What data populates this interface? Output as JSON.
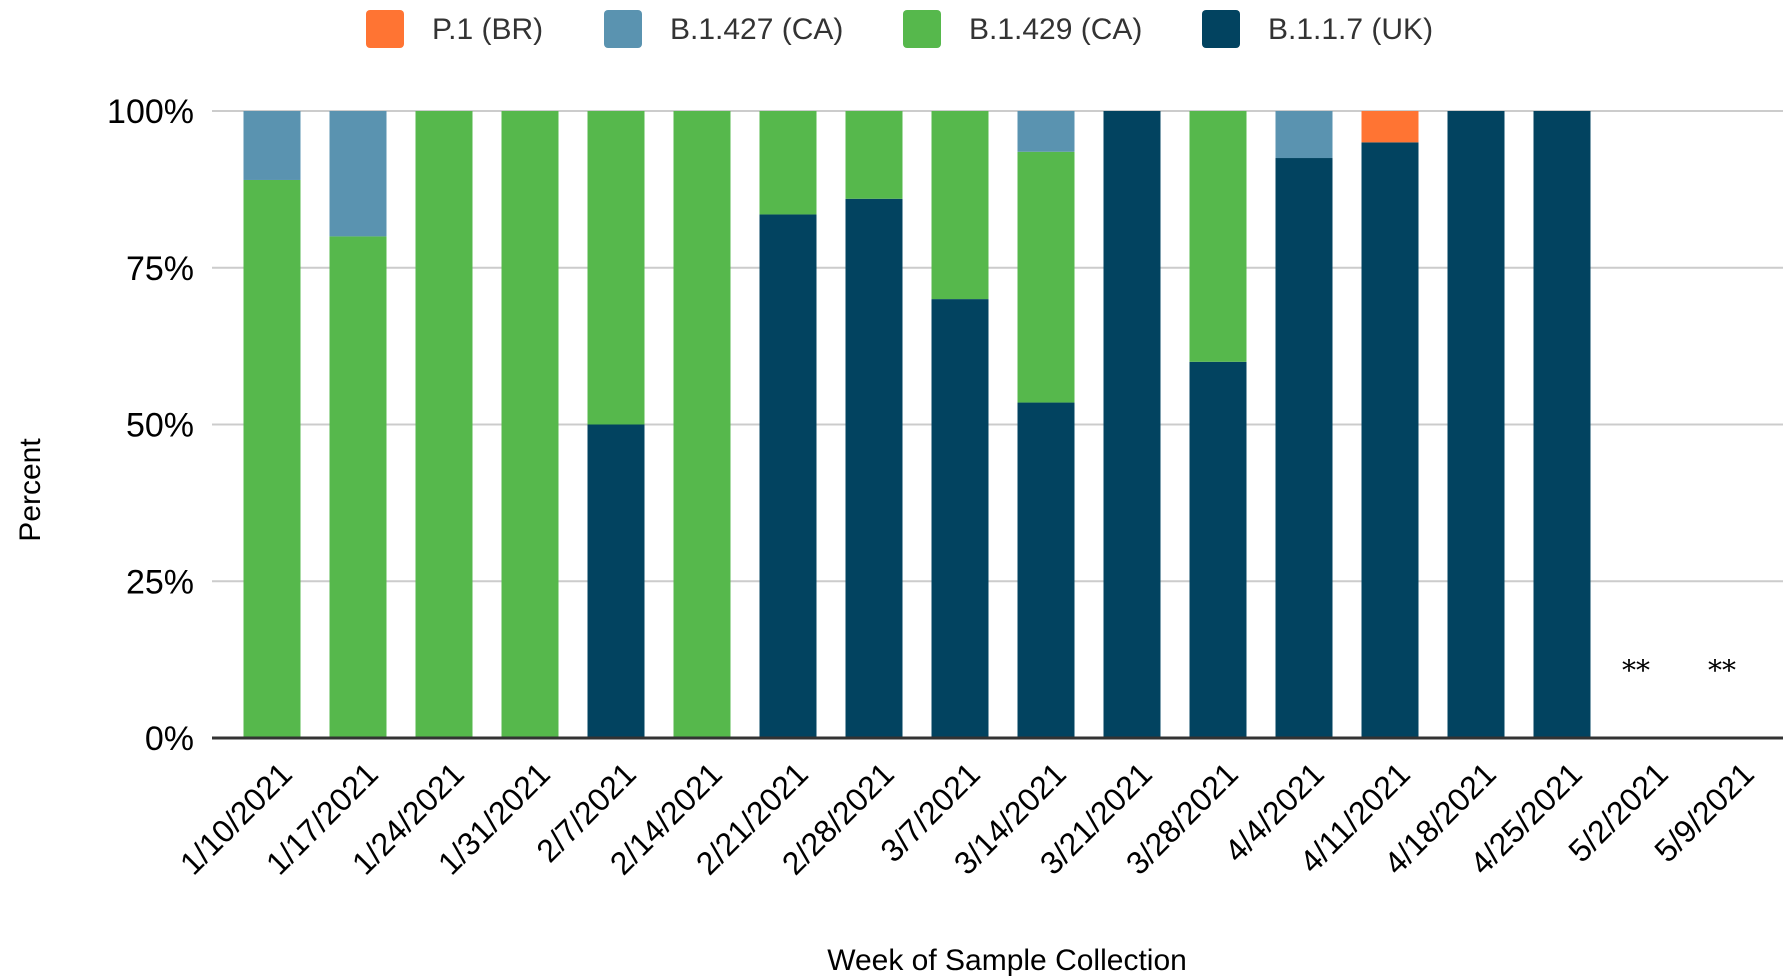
{
  "chart_data": {
    "type": "bar",
    "stacked": true,
    "xlabel": "Week of Sample Collection",
    "ylabel": "Percent",
    "ylim": [
      0,
      100
    ],
    "yticks": [
      "0%",
      "25%",
      "50%",
      "75%",
      "100%"
    ],
    "grid": true,
    "legend_position": "top",
    "legend": [
      "P.1 (BR)",
      "B.1.427 (CA)",
      "B.1.429 (CA)",
      "B.1.1.7 (UK)"
    ],
    "categories": [
      "1/10/2021",
      "1/17/2021",
      "1/24/2021",
      "1/31/2021",
      "2/7/2021",
      "2/14/2021",
      "2/21/2021",
      "2/28/2021",
      "3/7/2021",
      "3/14/2021",
      "3/21/2021",
      "3/28/2021",
      "4/4/2021",
      "4/11/2021",
      "4/18/2021",
      "4/25/2021",
      "5/2/2021",
      "5/9/2021"
    ],
    "stack_order": [
      "B.1.1.7 (UK)",
      "B.1.429 (CA)",
      "B.1.427 (CA)",
      "P.1 (BR)"
    ],
    "series": [
      {
        "name": "P.1 (BR)",
        "color": "#FF7433",
        "values": [
          0,
          0,
          0,
          0,
          0,
          0,
          0,
          0,
          0,
          0,
          0,
          0,
          0,
          5,
          0,
          0,
          null,
          null
        ]
      },
      {
        "name": "B.1.427 (CA)",
        "color": "#5A93B0",
        "values": [
          11,
          20,
          0,
          0,
          0,
          0,
          0,
          0,
          0,
          6.5,
          0,
          0,
          7.5,
          0,
          0,
          0,
          null,
          null
        ]
      },
      {
        "name": "B.1.429 (CA)",
        "color": "#56B84C",
        "values": [
          89,
          80,
          100,
          100,
          50,
          100,
          16.5,
          14,
          30,
          40,
          0,
          40,
          0,
          0,
          0,
          0,
          null,
          null
        ]
      },
      {
        "name": "B.1.1.7 (UK)",
        "color": "#024360",
        "values": [
          0,
          0,
          0,
          0,
          50,
          0,
          83.5,
          86,
          70,
          53.5,
          100,
          60,
          92.5,
          95,
          100,
          100,
          null,
          null
        ]
      }
    ],
    "annotations": [
      {
        "category": "5/2/2021",
        "text": "**"
      },
      {
        "category": "5/9/2021",
        "text": "**"
      }
    ]
  }
}
